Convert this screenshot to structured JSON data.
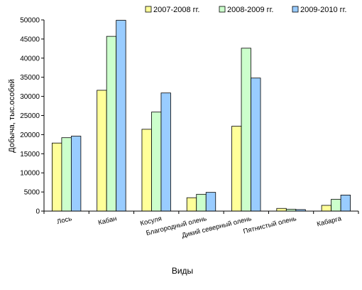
{
  "chart_data": {
    "type": "bar",
    "title": "",
    "xlabel": "Виды",
    "ylabel": "Добыча, тыс.особей",
    "ylim": [
      0,
      50000
    ],
    "yticks": [
      0,
      5000,
      10000,
      15000,
      20000,
      25000,
      30000,
      35000,
      40000,
      45000,
      50000
    ],
    "grid": false,
    "legend": "top-right",
    "categories": [
      "Лось",
      "Кабан",
      "Косуля",
      "Благородный олень",
      "Дикий северный олень",
      "Пятнистый олень",
      "Кабарга"
    ],
    "series": [
      {
        "name": "2007-2008 гг.",
        "color": "#ffff99",
        "values": [
          17800,
          31600,
          21400,
          3500,
          22200,
          700,
          1500
        ]
      },
      {
        "name": "2008-2009 гг.",
        "color": "#ccffcc",
        "values": [
          19200,
          45700,
          25900,
          4400,
          42600,
          500,
          3100
        ]
      },
      {
        "name": "2009-2010 гг.",
        "color": "#99ccff",
        "values": [
          19600,
          49900,
          30900,
          4900,
          34800,
          400,
          4200
        ]
      }
    ]
  }
}
